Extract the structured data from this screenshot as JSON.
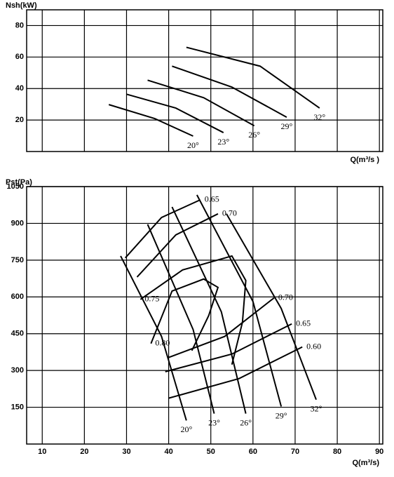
{
  "chart_data": [
    {
      "type": "line",
      "ylabel": "Nsh(kW)",
      "xlabel": "Q(m³/s )",
      "xlim": [
        6.3,
        90.8
      ],
      "ylim": [
        0,
        90
      ],
      "yticks": [
        20,
        40,
        60,
        80
      ],
      "xticks": [
        10,
        20,
        30,
        40,
        50,
        60,
        70,
        80,
        90
      ],
      "xtick_labels": false,
      "grid": true,
      "color": "#000000",
      "series": [
        {
          "name": "20°",
          "x": [
            25.8,
            36.7,
            45.8
          ],
          "values": [
            29.8,
            20.9,
            9.8
          ]
        },
        {
          "name": "23°",
          "x": [
            30,
            41.7,
            53
          ],
          "values": [
            36.4,
            27.6,
            12
          ]
        },
        {
          "name": "26°",
          "x": [
            35,
            48.3,
            60.3
          ],
          "values": [
            45.3,
            34.2,
            16.4
          ]
        },
        {
          "name": "29°",
          "x": [
            40.8,
            55,
            68
          ],
          "values": [
            54.2,
            40.9,
            21.8
          ]
        },
        {
          "name": "32°",
          "x": [
            44.2,
            61.7,
            75.8
          ],
          "values": [
            66.2,
            54.2,
            27.6
          ]
        }
      ]
    },
    {
      "type": "line",
      "ylabel": "Pst(Pa)",
      "xlabel": "Q(m³/s)",
      "xlim": [
        6.3,
        90.8
      ],
      "ylim": [
        0,
        1050
      ],
      "yticks": [
        150,
        300,
        450,
        600,
        750,
        900,
        1050
      ],
      "xticks": [
        10,
        20,
        30,
        40,
        50,
        60,
        70,
        80,
        90
      ],
      "xtick_labels": true,
      "grid": true,
      "color": "#000000",
      "series": [
        {
          "name": "20°",
          "x": [
            28.6,
            38.3,
            44.2
          ],
          "values": [
            767,
            439,
            96
          ]
        },
        {
          "name": "23°",
          "x": [
            35,
            45.8,
            50.8
          ],
          "values": [
            896,
            467,
            124
          ]
        },
        {
          "name": "26°",
          "x": [
            40.8,
            52.5,
            58.3
          ],
          "values": [
            967,
            539,
            124
          ]
        },
        {
          "name": "29°",
          "x": [
            46.7,
            60,
            66.7
          ],
          "values": [
            1016,
            581,
            153
          ]
        },
        {
          "name": "32°",
          "x": [
            53.7,
            66.7,
            75
          ],
          "values": [
            939,
            553,
            181
          ]
        },
        {
          "name": "0.65",
          "x": [
            29.7,
            38.3,
            47.5
          ],
          "values": [
            759,
            924,
            996
          ]
        },
        {
          "name": "0.70",
          "x": [
            32.5,
            41.7,
            51.7
          ],
          "values": [
            681,
            853,
            939
          ]
        },
        {
          "name": "0.75",
          "x": [
            55,
            57.5,
            58.3,
            55,
            43.3,
            33.3
          ],
          "values": [
            324,
            496,
            667,
            767,
            710,
            590
          ]
        },
        {
          "name": "0.80",
          "x": [
            45.5,
            49.5,
            51.7,
            48.3,
            40.8,
            35.8
          ],
          "values": [
            381,
            524,
            639,
            673,
            624,
            410
          ]
        },
        {
          "name": "0.70",
          "x": [
            40,
            53.3,
            65
          ],
          "values": [
            353,
            439,
            596
          ]
        },
        {
          "name": "0.65",
          "x": [
            39.2,
            55,
            69.2
          ],
          "values": [
            295,
            367,
            490
          ]
        },
        {
          "name": "0.60",
          "x": [
            40,
            56.7,
            71.7
          ],
          "values": [
            187,
            267,
            396
          ]
        }
      ]
    }
  ]
}
